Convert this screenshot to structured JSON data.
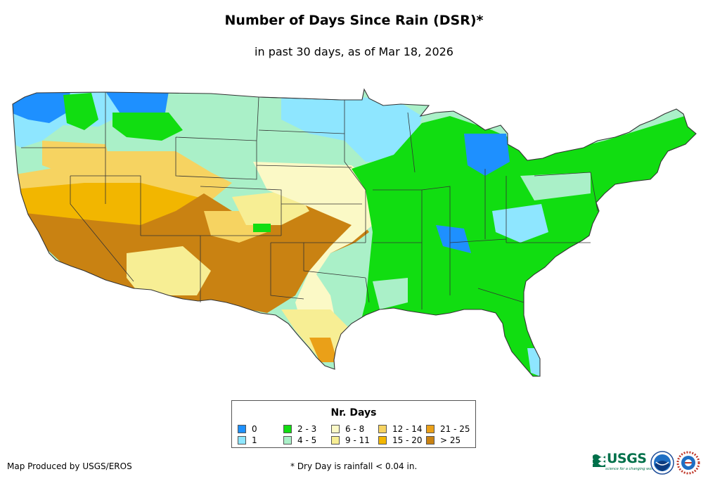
{
  "title": "Number of Days Since Rain (DSR)*",
  "subtitle": "in past 30 days, as of Mar 18, 2026",
  "legend": {
    "title": "Nr. Days",
    "items": [
      {
        "label": "0",
        "color": "#1e90ff"
      },
      {
        "label": "1",
        "color": "#8ee6ff"
      },
      {
        "label": "2 - 3",
        "color": "#11dd11"
      },
      {
        "label": "4 - 5",
        "color": "#aaf0c8"
      },
      {
        "label": "6 - 8",
        "color": "#fbf9c6"
      },
      {
        "label": "9 - 11",
        "color": "#f7ee94"
      },
      {
        "label": "12 - 14",
        "color": "#f6d361"
      },
      {
        "label": "15 - 20",
        "color": "#f2b600"
      },
      {
        "label": "21 - 25",
        "color": "#eaa018"
      },
      {
        "label": "> 25",
        "color": "#c98212"
      }
    ]
  },
  "footer": {
    "credit": "Map Produced by USGS/EROS",
    "note": "* Dry Day is rainfall < 0.04 in."
  },
  "logos": {
    "usgs": {
      "text": "USGS",
      "tagline": "science for a changing world"
    },
    "noaa": {
      "text": "NOAA"
    }
  }
}
